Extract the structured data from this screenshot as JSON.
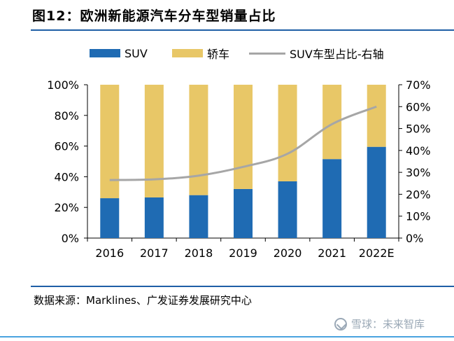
{
  "header": {
    "title": "图12：欧洲新能源汽车分车型销量占比"
  },
  "legend": {
    "suv_label": "SUV",
    "sedan_label": "轿车",
    "line_label": "SUV车型占比-右轴"
  },
  "colors": {
    "suv": "#1f6bb3",
    "sedan": "#e8c767",
    "line": "#a6a6a6",
    "axis": "#000000",
    "title_rule": "#1f5fa6"
  },
  "chart_data": {
    "type": "bar",
    "stacked": true,
    "categories": [
      "2016",
      "2017",
      "2018",
      "2019",
      "2020",
      "2021",
      "2022E"
    ],
    "series": [
      {
        "name": "SUV",
        "values": [
          26,
          26.5,
          28,
          32,
          37,
          51.5,
          59.5
        ]
      },
      {
        "name": "轿车",
        "values": [
          74,
          73.5,
          72,
          68,
          63,
          48.5,
          40.5
        ]
      }
    ],
    "line_series": {
      "name": "SUV车型占比-右轴",
      "axis": "right",
      "values": [
        26.5,
        26.8,
        28.5,
        32.5,
        38.5,
        52,
        60
      ]
    },
    "ylim_left": [
      0,
      100
    ],
    "yticks_left": [
      "0%",
      "20%",
      "40%",
      "60%",
      "80%",
      "100%"
    ],
    "ylim_right": [
      0,
      70
    ],
    "yticks_right": [
      "0%",
      "10%",
      "20%",
      "30%",
      "40%",
      "50%",
      "60%",
      "70%"
    ],
    "grid": false,
    "legend_position": "top"
  },
  "footer": {
    "source": "数据来源：Marklines、广发证券发展研究中心",
    "watermark": "雪球：未来智库"
  }
}
